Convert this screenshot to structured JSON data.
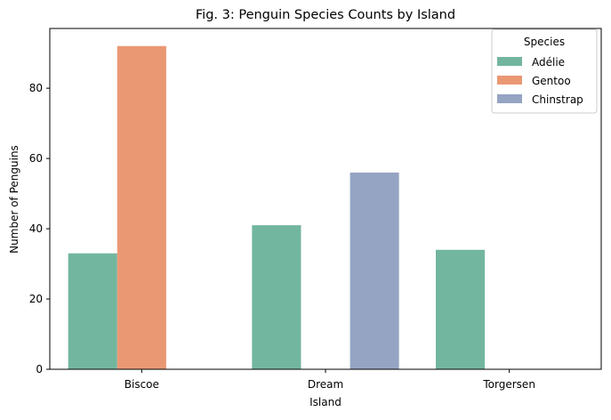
{
  "chart_data": {
    "type": "bar",
    "title": "Fig. 3: Penguin Species Counts by Island",
    "xlabel": "Island",
    "ylabel": "Number of Penguins",
    "categories": [
      "Biscoe",
      "Dream",
      "Torgersen"
    ],
    "series": [
      {
        "name": "Adélie",
        "color": "#72b6a0",
        "values": [
          33,
          41,
          34
        ]
      },
      {
        "name": "Gentoo",
        "color": "#ea9874",
        "values": [
          92,
          0,
          0
        ]
      },
      {
        "name": "Chinstrap",
        "color": "#95a4c2",
        "values": [
          0,
          56,
          0
        ]
      }
    ],
    "ylim": [
      0,
      97
    ],
    "yticks": [
      0,
      20,
      40,
      60,
      80
    ],
    "grid": false,
    "legend": {
      "title": "Species",
      "placement": "top-right"
    }
  }
}
